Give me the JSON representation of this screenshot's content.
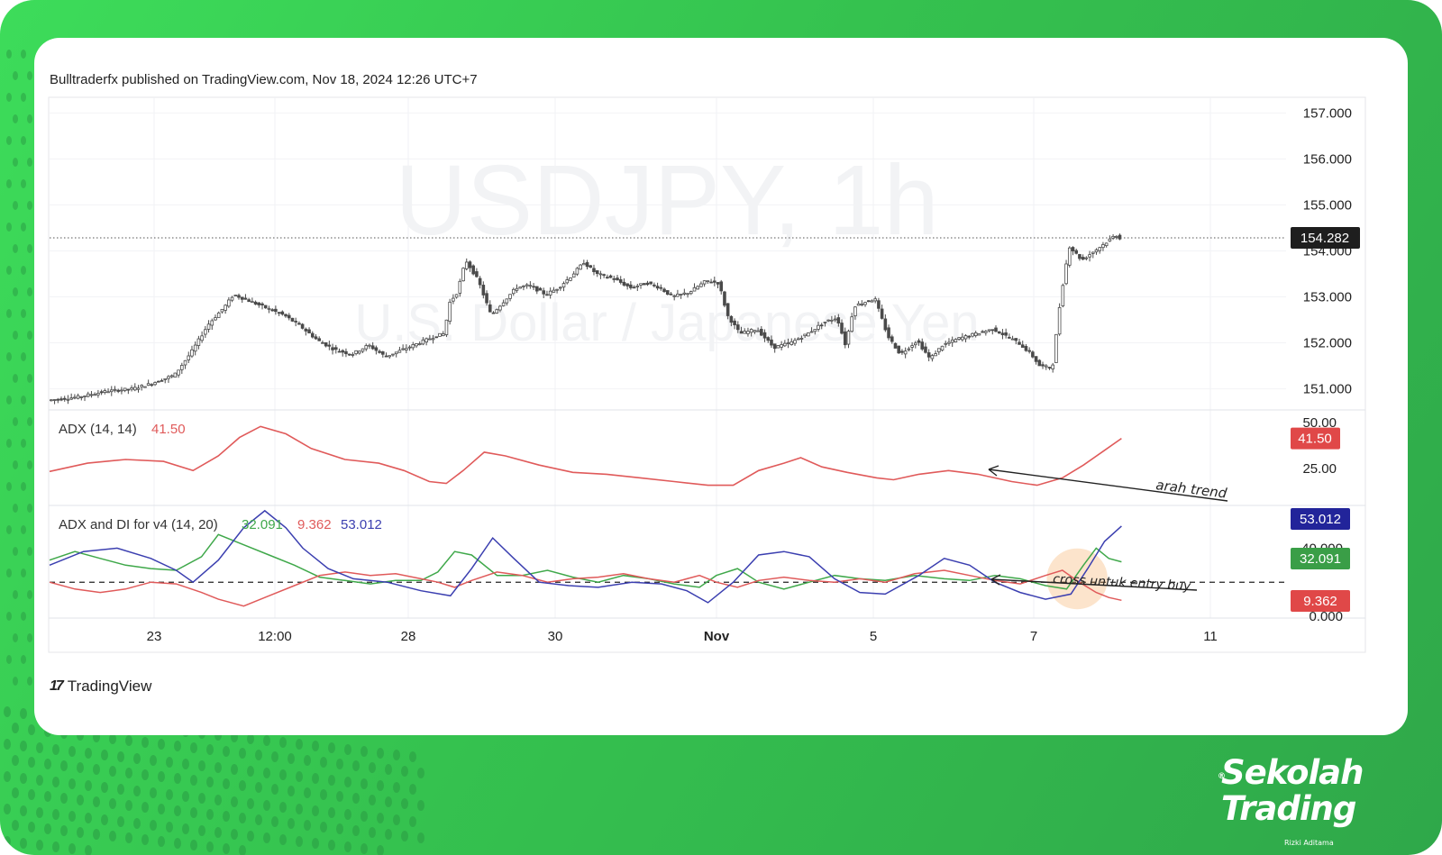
{
  "header": {
    "published": "Bulltraderfx published on TradingView.com, Nov 18, 2024 12:26 UTC+7"
  },
  "watermark": {
    "symbol": "USDJPY, 1h",
    "name": "U.S. Dollar / Japanese Yen"
  },
  "footer": {
    "tv_logo_mark": "17",
    "tv_logo_text": "TradingView"
  },
  "brand": {
    "line1": "Sekolah",
    "line2": "Trading",
    "sub": "Rizki Aditama",
    "reg": "®"
  },
  "colors": {
    "frame": "#35c24f",
    "candle": "#4a4a4a",
    "adx": "#e05a5a",
    "di_plus": "#3fa84a",
    "di_minus": "#e05a5a",
    "adx_v4": "#3b3fb0",
    "price_tag": "#1e1e1e",
    "highlight": "#f5a24b"
  },
  "chart_data": {
    "type": "candlestick",
    "symbol": "USDJPY",
    "interval": "1h",
    "x_ticks": [
      "23",
      "12:00",
      "28",
      "30",
      "Nov",
      "5",
      "7",
      "11"
    ],
    "price": {
      "y_ticks": [
        "157.000",
        "156.000",
        "155.000",
        "154.000",
        "153.000",
        "152.000",
        "151.000"
      ],
      "ylim": [
        150.6,
        157.3
      ],
      "last": "154.282",
      "last_value": 154.282,
      "path": [
        [
          0.0,
          150.75
        ],
        [
          0.7,
          150.82
        ],
        [
          1.4,
          150.95
        ],
        [
          2.0,
          151.0
        ],
        [
          2.4,
          151.1
        ],
        [
          3.0,
          151.3
        ],
        [
          3.4,
          151.8
        ],
        [
          3.8,
          152.4
        ],
        [
          4.2,
          152.8
        ],
        [
          4.4,
          153.05
        ],
        [
          4.8,
          152.9
        ],
        [
          5.2,
          152.75
        ],
        [
          5.6,
          152.6
        ],
        [
          6.0,
          152.35
        ],
        [
          6.4,
          152.05
        ],
        [
          6.8,
          151.85
        ],
        [
          7.2,
          151.75
        ],
        [
          7.6,
          151.95
        ],
        [
          8.0,
          151.7
        ],
        [
          8.4,
          151.85
        ],
        [
          8.8,
          152.0
        ],
        [
          9.2,
          152.15
        ],
        [
          9.4,
          152.2
        ],
        [
          9.5,
          152.85
        ],
        [
          9.7,
          153.1
        ],
        [
          9.9,
          153.8
        ],
        [
          10.2,
          153.35
        ],
        [
          10.5,
          152.6
        ],
        [
          10.8,
          152.9
        ],
        [
          11.1,
          153.2
        ],
        [
          11.4,
          153.25
        ],
        [
          11.8,
          153.05
        ],
        [
          12.1,
          153.2
        ],
        [
          12.4,
          153.45
        ],
        [
          12.7,
          153.75
        ],
        [
          13.0,
          153.5
        ],
        [
          13.4,
          153.4
        ],
        [
          13.8,
          153.2
        ],
        [
          14.2,
          153.3
        ],
        [
          14.5,
          153.2
        ],
        [
          14.8,
          153.0
        ],
        [
          15.2,
          153.1
        ],
        [
          15.6,
          153.35
        ],
        [
          15.9,
          153.3
        ],
        [
          16.1,
          152.6
        ],
        [
          16.4,
          152.2
        ],
        [
          16.8,
          152.3
        ],
        [
          17.2,
          151.9
        ],
        [
          17.6,
          152.0
        ],
        [
          18.0,
          152.2
        ],
        [
          18.4,
          152.45
        ],
        [
          18.7,
          152.55
        ],
        [
          18.9,
          151.95
        ],
        [
          19.1,
          152.8
        ],
        [
          19.4,
          152.9
        ],
        [
          19.6,
          152.95
        ],
        [
          19.9,
          152.15
        ],
        [
          20.2,
          151.75
        ],
        [
          20.6,
          152.05
        ],
        [
          20.9,
          151.65
        ],
        [
          21.2,
          151.95
        ],
        [
          21.6,
          152.1
        ],
        [
          22.0,
          152.2
        ],
        [
          22.4,
          152.3
        ],
        [
          22.7,
          152.15
        ],
        [
          23.0,
          152.0
        ],
        [
          23.3,
          151.75
        ],
        [
          23.5,
          151.5
        ],
        [
          23.8,
          151.45
        ],
        [
          24.0,
          153.0
        ],
        [
          24.2,
          154.1
        ],
        [
          24.5,
          153.8
        ],
        [
          24.8,
          154.0
        ],
        [
          25.1,
          154.2
        ],
        [
          25.3,
          154.35
        ],
        [
          25.4,
          154.28
        ]
      ]
    },
    "adx": {
      "name": "ADX (14, 14)",
      "value": "41.50",
      "y_ticks": [
        "50.00",
        "25.00"
      ],
      "ylim": [
        6,
        56
      ],
      "path": [
        [
          0,
          23.5
        ],
        [
          0.9,
          28
        ],
        [
          1.8,
          30
        ],
        [
          2.7,
          29
        ],
        [
          3.4,
          24
        ],
        [
          4.0,
          32
        ],
        [
          4.5,
          42
        ],
        [
          5.0,
          48
        ],
        [
          5.6,
          44
        ],
        [
          6.2,
          36
        ],
        [
          7.0,
          30
        ],
        [
          7.8,
          28
        ],
        [
          8.4,
          24
        ],
        [
          9.0,
          18
        ],
        [
          9.4,
          17
        ],
        [
          9.8,
          24
        ],
        [
          10.3,
          34
        ],
        [
          10.8,
          32
        ],
        [
          11.6,
          27
        ],
        [
          12.4,
          23
        ],
        [
          13.2,
          22
        ],
        [
          14.0,
          20
        ],
        [
          14.8,
          18
        ],
        [
          15.6,
          16
        ],
        [
          16.2,
          16
        ],
        [
          16.8,
          24
        ],
        [
          17.4,
          28
        ],
        [
          17.8,
          31
        ],
        [
          18.3,
          26
        ],
        [
          18.9,
          23
        ],
        [
          19.6,
          20
        ],
        [
          20.0,
          19
        ],
        [
          20.6,
          22
        ],
        [
          21.3,
          24
        ],
        [
          22.0,
          22
        ],
        [
          22.8,
          18
        ],
        [
          23.4,
          16
        ],
        [
          24.0,
          20
        ],
        [
          24.5,
          27
        ],
        [
          25.0,
          35
        ],
        [
          25.4,
          41.5
        ]
      ]
    },
    "adx_di": {
      "name": "ADX and DI for v4 (14, 20)",
      "dashed_level": 20,
      "ylim": [
        0,
        63
      ],
      "y_ticks": [
        "40.000",
        "0.000"
      ],
      "series": [
        {
          "name": "ADX",
          "value": "53.012",
          "path": [
            [
              0,
              30
            ],
            [
              0.8,
              38
            ],
            [
              1.6,
              40
            ],
            [
              2.4,
              34
            ],
            [
              3.0,
              27
            ],
            [
              3.4,
              20
            ],
            [
              4.0,
              33
            ],
            [
              4.6,
              52
            ],
            [
              5.1,
              62
            ],
            [
              5.6,
              52
            ],
            [
              6.0,
              40
            ],
            [
              6.6,
              28
            ],
            [
              7.2,
              22
            ],
            [
              8.0,
              20
            ],
            [
              8.8,
              15
            ],
            [
              9.5,
              12
            ],
            [
              10.0,
              28
            ],
            [
              10.5,
              46
            ],
            [
              11.0,
              34
            ],
            [
              11.6,
              20
            ],
            [
              12.3,
              18
            ],
            [
              13.0,
              17
            ],
            [
              13.8,
              20
            ],
            [
              14.5,
              19
            ],
            [
              15.1,
              15
            ],
            [
              15.6,
              8
            ],
            [
              16.2,
              20
            ],
            [
              16.8,
              36
            ],
            [
              17.4,
              38
            ],
            [
              18.0,
              35
            ],
            [
              18.6,
              22
            ],
            [
              19.2,
              14
            ],
            [
              19.8,
              13
            ],
            [
              20.6,
              24
            ],
            [
              21.2,
              34
            ],
            [
              21.8,
              30
            ],
            [
              22.4,
              20
            ],
            [
              23.0,
              14
            ],
            [
              23.6,
              10
            ],
            [
              24.2,
              13
            ],
            [
              24.6,
              28
            ],
            [
              25.0,
              44
            ],
            [
              25.4,
              53
            ]
          ]
        },
        {
          "name": "DI+",
          "value": "32.091",
          "path": [
            [
              0,
              33
            ],
            [
              0.6,
              38
            ],
            [
              1.2,
              34
            ],
            [
              1.8,
              30
            ],
            [
              2.4,
              28
            ],
            [
              3.0,
              27
            ],
            [
              3.6,
              35
            ],
            [
              4.0,
              48
            ],
            [
              4.6,
              42
            ],
            [
              5.2,
              36
            ],
            [
              5.8,
              30
            ],
            [
              6.4,
              23
            ],
            [
              7.0,
              21
            ],
            [
              7.6,
              19
            ],
            [
              8.2,
              21
            ],
            [
              8.8,
              21
            ],
            [
              9.2,
              26
            ],
            [
              9.6,
              38
            ],
            [
              10.0,
              36
            ],
            [
              10.6,
              24
            ],
            [
              11.2,
              24
            ],
            [
              11.8,
              27
            ],
            [
              12.4,
              23
            ],
            [
              13.0,
              20
            ],
            [
              13.6,
              24
            ],
            [
              14.2,
              22
            ],
            [
              14.8,
              19
            ],
            [
              15.4,
              17
            ],
            [
              15.8,
              24
            ],
            [
              16.3,
              28
            ],
            [
              16.8,
              20
            ],
            [
              17.4,
              16
            ],
            [
              18.0,
              20
            ],
            [
              18.6,
              24
            ],
            [
              19.2,
              22
            ],
            [
              19.8,
              21
            ],
            [
              20.5,
              24
            ],
            [
              21.2,
              22
            ],
            [
              21.8,
              21
            ],
            [
              22.4,
              24
            ],
            [
              23.0,
              22
            ],
            [
              23.6,
              18
            ],
            [
              24.1,
              16
            ],
            [
              24.5,
              30
            ],
            [
              24.8,
              40
            ],
            [
              25.1,
              34
            ],
            [
              25.4,
              32
            ]
          ]
        },
        {
          "name": "DI-",
          "value": "9.362",
          "path": [
            [
              0,
              20
            ],
            [
              0.6,
              16
            ],
            [
              1.2,
              14
            ],
            [
              1.8,
              16
            ],
            [
              2.4,
              20
            ],
            [
              3.0,
              19
            ],
            [
              3.6,
              14
            ],
            [
              4.0,
              10
            ],
            [
              4.6,
              6
            ],
            [
              5.2,
              12
            ],
            [
              5.8,
              18
            ],
            [
              6.4,
              24
            ],
            [
              7.0,
              26
            ],
            [
              7.6,
              24
            ],
            [
              8.2,
              25
            ],
            [
              8.8,
              22
            ],
            [
              9.2,
              20
            ],
            [
              9.6,
              17
            ],
            [
              10.0,
              21
            ],
            [
              10.6,
              26
            ],
            [
              11.2,
              24
            ],
            [
              11.8,
              20
            ],
            [
              12.4,
              22
            ],
            [
              13.0,
              23
            ],
            [
              13.6,
              25
            ],
            [
              14.2,
              22
            ],
            [
              14.8,
              20
            ],
            [
              15.4,
              24
            ],
            [
              15.8,
              20
            ],
            [
              16.3,
              17
            ],
            [
              16.8,
              21
            ],
            [
              17.4,
              23
            ],
            [
              18.0,
              21
            ],
            [
              18.6,
              20
            ],
            [
              19.2,
              22
            ],
            [
              19.8,
              20
            ],
            [
              20.5,
              25
            ],
            [
              21.2,
              27
            ],
            [
              21.8,
              24
            ],
            [
              22.4,
              21
            ],
            [
              23.0,
              19
            ],
            [
              23.6,
              24
            ],
            [
              24.0,
              27
            ],
            [
              24.4,
              20
            ],
            [
              24.8,
              14
            ],
            [
              25.1,
              11
            ],
            [
              25.4,
              9.362
            ]
          ]
        }
      ]
    },
    "annotations": [
      {
        "text": "arah trend"
      },
      {
        "text": "cross untuk entry buy"
      }
    ]
  }
}
